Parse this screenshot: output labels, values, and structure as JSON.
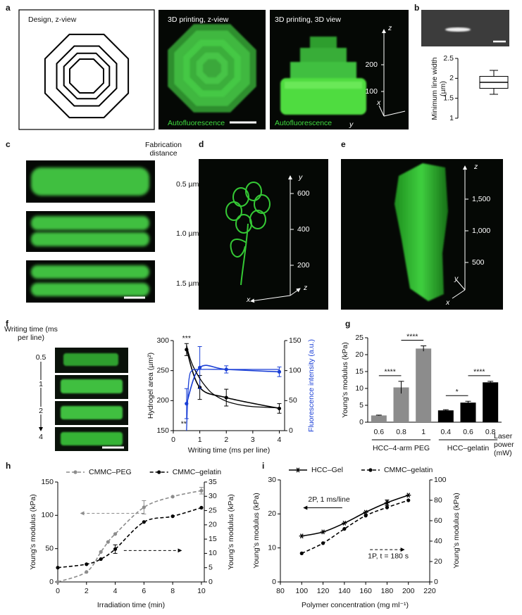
{
  "panel_labels": [
    "a",
    "b",
    "c",
    "d",
    "e",
    "f",
    "g",
    "h",
    "i"
  ],
  "images": {
    "a": {
      "design_title": "Design, z-view",
      "zview_title": "3D printing, z-view",
      "view3d_title": "3D printing, 3D view",
      "zview_caption": "Autofluorescence",
      "view3d_caption": "Autofluorescence",
      "axis_ticks": [
        "200",
        "100"
      ],
      "axis_names": [
        "z",
        "x",
        "y"
      ]
    },
    "c": {
      "header": "Fabrication distance",
      "labels": [
        "0.5 µm",
        "1.0 µm",
        "1.5 µm"
      ]
    },
    "d": {
      "axis_ticks": [
        "600",
        "400",
        "200"
      ],
      "axis_names": [
        "y",
        "x",
        "z"
      ]
    },
    "e": {
      "axis_ticks": [
        "1,500",
        "1,000",
        "500"
      ],
      "axis_names": [
        "z",
        "y",
        "x"
      ]
    },
    "f": {
      "header": "Writing time (ms per line)",
      "labels": [
        "0.5",
        "1",
        "2",
        "4"
      ]
    }
  },
  "chart_data": [
    {
      "type": "box",
      "ylabel": "Minimum line width (µm)",
      "ylim": [
        1,
        2.5
      ],
      "yticks": [
        1,
        1.5,
        2,
        2.5
      ],
      "box": {
        "min": 1.6,
        "q1": 1.75,
        "median": 1.9,
        "q3": 2.05,
        "max": 2.2
      }
    },
    {
      "type": "line",
      "xlabel": "Writing time (ms per line)",
      "ylabel": "Hydrogel area (µm²)",
      "y2label": "Fluorescence intensity (a.u.)",
      "y2label_color": "#1a3fd6",
      "xlim": [
        0,
        4.2
      ],
      "xticks": [
        0,
        1,
        2,
        3,
        4
      ],
      "ylim": [
        150,
        300
      ],
      "yticks": [
        150,
        200,
        250,
        300
      ],
      "y2lim": [
        0,
        150
      ],
      "y2ticks": [
        0,
        50,
        100,
        150
      ],
      "series": [
        {
          "color": "#000000",
          "markers": true,
          "x": [
            0.5,
            1,
            2,
            4
          ],
          "values": [
            285,
            222,
            205,
            187
          ],
          "errors": [
            10,
            20,
            14,
            8
          ]
        },
        {
          "color": "#1a3fd6",
          "axis": "y2",
          "markers": true,
          "x": [
            0.5,
            1,
            2,
            4
          ],
          "values": [
            45,
            105,
            102,
            98
          ],
          "errors": [
            25,
            35,
            6,
            8
          ]
        },
        {
          "color": "#000000",
          "markers": false,
          "x": [
            0.5,
            0.6,
            0.75,
            1,
            1.25,
            1.5,
            2,
            2.5,
            3,
            4
          ],
          "values": [
            292,
            275,
            257,
            237,
            222,
            211,
            199,
            193,
            190,
            188
          ]
        },
        {
          "color": "#1a3fd6",
          "axis": "y2",
          "markers": false,
          "x": [
            0.5,
            0.55,
            0.6,
            0.7,
            1,
            2,
            4
          ],
          "values": [
            0,
            60,
            88,
            100,
            102,
            102,
            102
          ]
        }
      ],
      "annotations": [
        "***",
        "**"
      ]
    },
    {
      "type": "bar",
      "ylabel": "Young’s modulus (kPa)",
      "xlabel": "Laser power (mW)",
      "ylim": [
        0,
        25
      ],
      "yticks": [
        0,
        5,
        10,
        15,
        20,
        25
      ],
      "categories": [
        "0.6",
        "0.8",
        "1",
        "0.4",
        "0.6",
        "0.8"
      ],
      "values": [
        2,
        10.3,
        21.8,
        3.5,
        5.8,
        11.8
      ],
      "errors": [
        0.1,
        1.8,
        0.8,
        0.2,
        0.4,
        0.3
      ],
      "colors": [
        "#8c8c8c",
        "#8c8c8c",
        "#8c8c8c",
        "#000000",
        "#000000",
        "#000000"
      ],
      "groups": [
        "HCC–4-arm PEG",
        "HCC–gelatin"
      ],
      "annotations": [
        "****",
        "****",
        "*",
        "****"
      ]
    },
    {
      "type": "line",
      "xlabel": "Irradiation time (min)",
      "ylabel": "Young’s modulus (kPa)",
      "y2label": "Young’s modulus (kPa)",
      "xlim": [
        0,
        10.2
      ],
      "xticks": [
        0,
        2,
        4,
        6,
        8,
        10
      ],
      "ylim": [
        0,
        150
      ],
      "yticks": [
        0,
        50,
        100,
        150
      ],
      "y2lim": [
        0,
        35
      ],
      "y2ticks": [
        0,
        5,
        10,
        15,
        20,
        25,
        30,
        35
      ],
      "legend": "top",
      "series": [
        {
          "name": "CMMC–PEG",
          "color": "#8c8c8c",
          "dash": true,
          "markers": true,
          "marker": "circle",
          "x": [
            0,
            2,
            3,
            3.5,
            4,
            6,
            8,
            10
          ],
          "values": [
            0,
            15,
            45,
            60,
            72,
            112,
            128,
            137
          ],
          "errors": [
            null,
            null,
            null,
            null,
            null,
            10,
            null,
            5
          ]
        },
        {
          "name": "CMMC–gelatin",
          "color": "#000000",
          "dash": true,
          "markers": true,
          "marker": "circle",
          "axis": "y2",
          "x": [
            0,
            2,
            3,
            4,
            6,
            8,
            10
          ],
          "values": [
            5,
            6.2,
            8,
            11.5,
            21,
            23,
            26
          ],
          "errors": [
            null,
            null,
            null,
            1.5,
            null,
            null,
            null
          ]
        }
      ]
    },
    {
      "type": "line",
      "xlabel": "Polymer concentration (mg ml⁻¹)",
      "ylabel": "Young’s modulus (kPa)",
      "y2label": "Young’s modulus (kPa)",
      "xlim": [
        80,
        220
      ],
      "xticks": [
        80,
        100,
        120,
        140,
        160,
        180,
        200,
        220
      ],
      "ylim": [
        0,
        30
      ],
      "yticks": [
        0,
        10,
        20,
        30
      ],
      "y2lim": [
        0,
        100
      ],
      "y2ticks": [
        0,
        20,
        40,
        60,
        80,
        100
      ],
      "legend": "top",
      "series": [
        {
          "name": "HCC–Gel",
          "color": "#000000",
          "dash": false,
          "markers": true,
          "marker": "star",
          "x": [
            100,
            120,
            140,
            160,
            180,
            200
          ],
          "values": [
            13.5,
            14.7,
            17.3,
            20.5,
            23.3,
            25.5
          ],
          "errors": [
            null,
            null,
            null,
            null,
            0.8,
            null
          ]
        },
        {
          "name": "CMMC–gelatin",
          "color": "#000000",
          "dash": true,
          "markers": true,
          "marker": "circle",
          "axis": "y2",
          "x": [
            100,
            120,
            140,
            160,
            180,
            200
          ],
          "values": [
            28,
            38,
            52,
            65,
            73,
            80
          ],
          "errors": [
            null,
            null,
            null,
            null,
            null,
            null
          ]
        }
      ],
      "annotations": [
        "2P, 1 ms/line",
        "1P, t = 180 s"
      ]
    }
  ]
}
